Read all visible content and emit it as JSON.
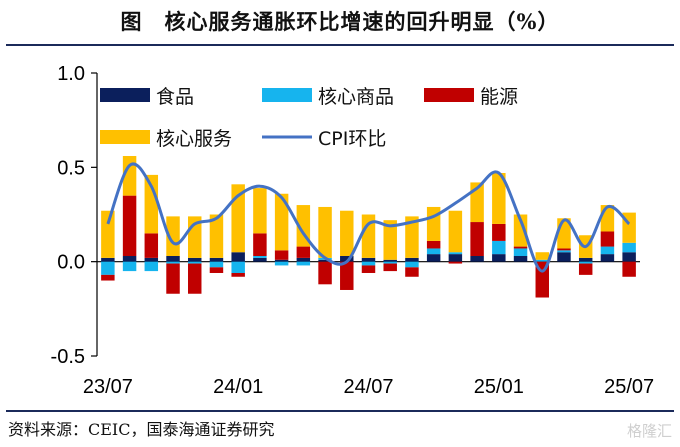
{
  "title": "图　核心服务通胀环比增速的回升明显（%）",
  "source": "资料来源：CEIC，国泰海通证券研究",
  "watermark": "格隆汇",
  "colors": {
    "food": "#0b1f5c",
    "core_goods": "#16b4ee",
    "energy": "#c00000",
    "core_services": "#ffc000",
    "cpi": "#4472c4"
  },
  "chart_data": {
    "type": "bar",
    "stacked": true,
    "ylim": [
      -0.5,
      1.0
    ],
    "yticks": [
      -0.5,
      0.0,
      0.5,
      1.0
    ],
    "ytick_labels": [
      "-0.5",
      "0.0",
      "0.5",
      "1.0"
    ],
    "xtick_labels": [
      "23/07",
      "24/01",
      "24/07",
      "25/01",
      "25/07"
    ],
    "xtick_indices": [
      0,
      6,
      12,
      18,
      24
    ],
    "categories": [
      "23/07",
      "23/08",
      "23/09",
      "23/10",
      "23/11",
      "23/12",
      "24/01",
      "24/02",
      "24/03",
      "24/04",
      "24/05",
      "24/06",
      "24/07",
      "24/08",
      "24/09",
      "24/10",
      "24/11",
      "24/12",
      "25/01",
      "25/02",
      "25/03",
      "25/04",
      "25/05",
      "25/06",
      "25/07"
    ],
    "legend": [
      "食品",
      "核心商品",
      "能源",
      "核心服务",
      "CPI环比"
    ],
    "series": [
      {
        "name": "食品",
        "key": "food",
        "values": [
          0.02,
          0.03,
          0.02,
          0.03,
          0.02,
          0.02,
          0.05,
          0.02,
          0.01,
          0.02,
          0.01,
          0.03,
          0.02,
          0.01,
          0.02,
          0.04,
          0.04,
          0.03,
          0.04,
          0.03,
          0.0,
          0.05,
          0.02,
          0.04,
          0.05
        ]
      },
      {
        "name": "核心商品",
        "key": "core_goods",
        "values": [
          -0.07,
          -0.05,
          -0.05,
          -0.01,
          -0.01,
          -0.03,
          -0.06,
          0.01,
          -0.02,
          -0.02,
          0.01,
          0.0,
          -0.02,
          -0.01,
          -0.03,
          0.03,
          0.01,
          0.0,
          0.07,
          0.04,
          0.01,
          0.01,
          -0.01,
          0.04,
          0.05
        ]
      },
      {
        "name": "能源",
        "key": "energy",
        "values": [
          -0.03,
          0.32,
          0.13,
          -0.16,
          -0.16,
          -0.03,
          -0.02,
          0.12,
          0.05,
          0.06,
          -0.12,
          -0.15,
          -0.04,
          -0.04,
          -0.05,
          0.04,
          -0.01,
          0.18,
          0.09,
          0.01,
          -0.19,
          0.01,
          -0.06,
          0.08,
          -0.08
        ]
      },
      {
        "name": "核心服务",
        "key": "core_services",
        "values": [
          0.25,
          0.21,
          0.31,
          0.21,
          0.22,
          0.23,
          0.36,
          0.24,
          0.3,
          0.22,
          0.27,
          0.24,
          0.23,
          0.21,
          0.22,
          0.18,
          0.22,
          0.21,
          0.27,
          0.17,
          0.04,
          0.16,
          0.12,
          0.14,
          0.16
        ]
      },
      {
        "name": "CPI环比",
        "key": "cpi",
        "type": "line",
        "values": [
          0.2,
          0.51,
          0.4,
          0.1,
          0.2,
          0.23,
          0.35,
          0.4,
          0.34,
          0.15,
          0.02,
          0.0,
          0.2,
          0.19,
          0.21,
          0.24,
          0.31,
          0.39,
          0.47,
          0.22,
          -0.05,
          0.22,
          0.08,
          0.29,
          0.2
        ]
      }
    ]
  }
}
